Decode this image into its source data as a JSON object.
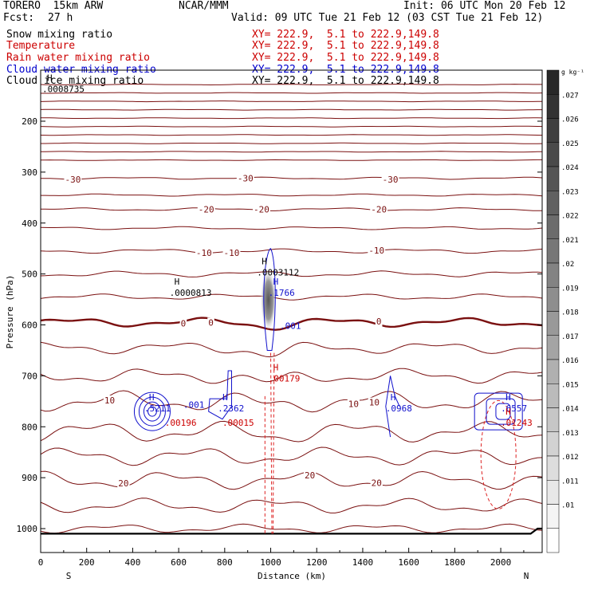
{
  "header": {
    "model": "TORERO  15km ARW",
    "center": "NCAR/MMM",
    "init": "Init: 06 UTC Mon 20 Feb 12",
    "fcst_label": "Fcst:",
    "fcst_value": "27 h",
    "valid": "Valid: 09 UTC Tue 21 Feb 12 (03 CST Tue 21 Feb 12)"
  },
  "fields": [
    {
      "name": "Snow mixing ratio",
      "xy": "XY= 222.9,  5.1 to 222.9,149.8",
      "color": "#000000"
    },
    {
      "name": "Temperature",
      "xy": "XY= 222.9,  5.1 to 222.9,149.8",
      "color": "#cc0000"
    },
    {
      "name": "Rain water mixing ratio",
      "xy": "XY= 222.9,  5.1 to 222.9,149.8",
      "color": "#cc0000"
    },
    {
      "name": "Cloud water mixing ratio",
      "xy": "XY= 222.9,  5.1 to 222.9,149.8",
      "color": "#0000cc"
    },
    {
      "name": "Cloud ice mixing ratio",
      "xy": "XY= 222.9,  5.1 to 222.9,149.8",
      "color": "#000000"
    }
  ],
  "colorbar": {
    "unit": "g kg⁻¹",
    "ticks": [
      ".027",
      ".026",
      ".025",
      ".024",
      ".023",
      ".022",
      ".021",
      ".02",
      ".019",
      ".018",
      ".017",
      ".016",
      ".015",
      ".014",
      ".013",
      ".012",
      ".011",
      ".01"
    ]
  },
  "chart_data": {
    "type": "contour cross-section",
    "xlabel": "Distance (km)",
    "ylabel": "Pressure (hPa)",
    "xlim": [
      0,
      2180
    ],
    "ylim": [
      1050,
      100
    ],
    "x_ticks": [
      0,
      200,
      400,
      600,
      800,
      1000,
      1200,
      1400,
      1600,
      1800,
      2000
    ],
    "y_ticks": [
      1000,
      900,
      800,
      700,
      600,
      500,
      400,
      300,
      200
    ],
    "side_labels": {
      "left": "S",
      "right": "N"
    },
    "temperature_contour_labels": [
      {
        "text": "-30",
        "x": 140,
        "p": 314
      },
      {
        "text": "-30",
        "x": 890,
        "p": 312
      },
      {
        "text": "-30",
        "x": 1520,
        "p": 314
      },
      {
        "text": "-20",
        "x": 720,
        "p": 373
      },
      {
        "text": "-20",
        "x": 960,
        "p": 373
      },
      {
        "text": "-20",
        "x": 1470,
        "p": 373
      },
      {
        "text": "-10",
        "x": 710,
        "p": 458
      },
      {
        "text": "-10",
        "x": 830,
        "p": 458
      },
      {
        "text": "-10",
        "x": 1460,
        "p": 454
      },
      {
        "text": "0",
        "x": 620,
        "p": 597
      },
      {
        "text": "0",
        "x": 740,
        "p": 595
      },
      {
        "text": "0",
        "x": 1470,
        "p": 593
      },
      {
        "text": "10",
        "x": 300,
        "p": 748
      },
      {
        "text": "10",
        "x": 1360,
        "p": 755
      },
      {
        "text": "10",
        "x": 1450,
        "p": 752
      },
      {
        "text": "20",
        "x": 360,
        "p": 911
      },
      {
        "text": "20",
        "x": 1170,
        "p": 895
      },
      {
        "text": "20",
        "x": 1460,
        "p": 910
      }
    ],
    "extrema_labels": [
      {
        "mark": "H",
        "value": ".0008735",
        "x": 0,
        "p": 140,
        "field": "snow"
      },
      {
        "mark": "H",
        "value": ".0000813",
        "x": 560,
        "p": 540,
        "field": "snow"
      },
      {
        "mark": "H",
        "value": ".0003112",
        "x": 940,
        "p": 500,
        "field": "ice"
      },
      {
        "mark": "H",
        "value": ".1766",
        "x": 990,
        "p": 540,
        "field": "cloud"
      },
      {
        "mark": "",
        "value": ".001",
        "x": 1040,
        "p": 605,
        "field": "cloud"
      },
      {
        "mark": "H",
        "value": ".00179",
        "x": 990,
        "p": 708,
        "field": "rain"
      },
      {
        "mark": "H",
        "value": ".5211",
        "x": 450,
        "p": 767,
        "field": "cloud"
      },
      {
        "mark": "",
        "value": ".001",
        "x": 620,
        "p": 760,
        "field": "cloud"
      },
      {
        "mark": "",
        "value": ".00196",
        "x": 540,
        "p": 795,
        "field": "rain"
      },
      {
        "mark": "H",
        "value": ".2362",
        "x": 770,
        "p": 767,
        "field": "cloud"
      },
      {
        "mark": "",
        "value": ".00015",
        "x": 790,
        "p": 795,
        "field": "rain"
      },
      {
        "mark": "H",
        "value": ".0968",
        "x": 1500,
        "p": 767,
        "field": "cloud"
      },
      {
        "mark": "H",
        "value": ".6557",
        "x": 2000,
        "p": 767,
        "field": "cloud"
      },
      {
        "mark": "H",
        "value": ".01243",
        "x": 2000,
        "p": 795,
        "field": "rain"
      }
    ],
    "freezing_level_hPa": 595,
    "surface_hPa": 1010
  }
}
